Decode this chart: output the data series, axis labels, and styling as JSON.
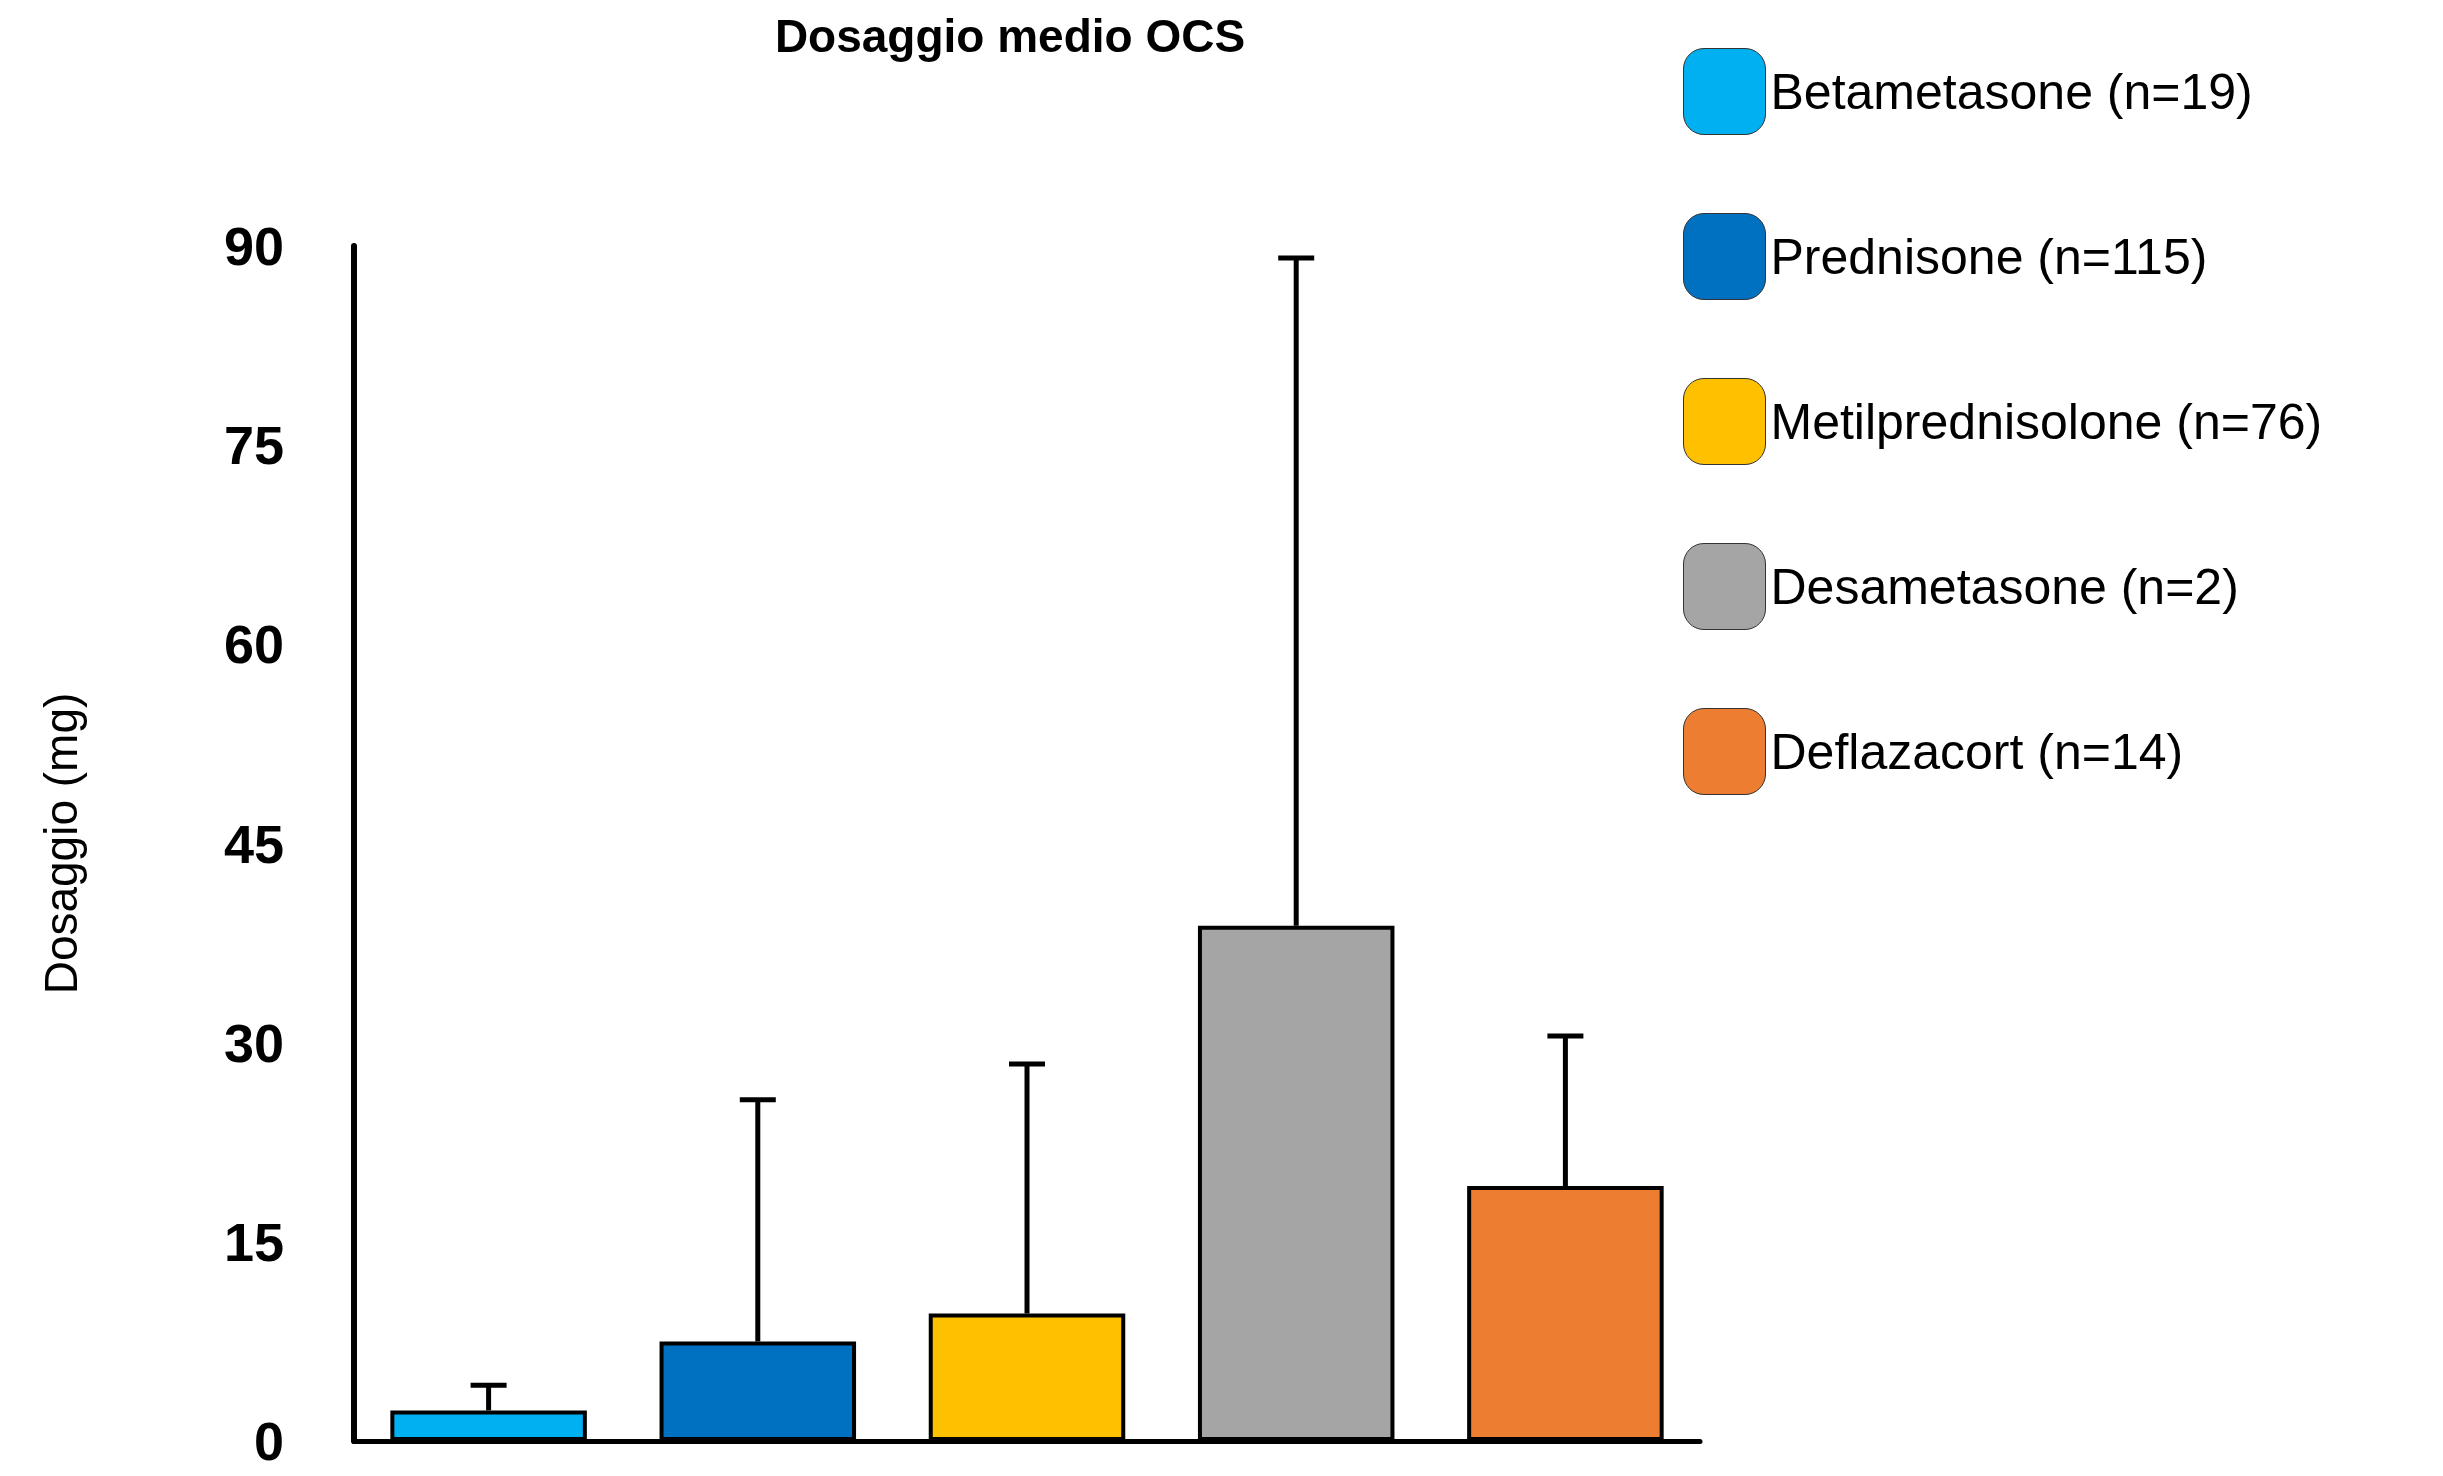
{
  "chart_data": {
    "type": "bar",
    "title": "Dosaggio medio OCS",
    "ylabel": "Dosaggio (mg)",
    "categories": [
      null,
      null,
      null,
      null,
      null
    ],
    "stacked": true,
    "series": [
      {
        "name": "Betametasone (n=19)",
        "color": "#00b0f0",
        "values": [
          2.3,
          null,
          null,
          null,
          null
        ],
        "errors": [
          [
            2.3,
            4.2
          ],
          null,
          null,
          null,
          null
        ]
      },
      {
        "name": "Prednisone (n=115)",
        "color": "#0070c0",
        "values": [
          null,
          7.5,
          null,
          null,
          null
        ],
        "errors": [
          null,
          [
            7.5,
            25.7
          ],
          null,
          null,
          null
        ]
      },
      {
        "name": "Metilprednisolone (n=76)",
        "color": "#ffc000",
        "values": [
          null,
          null,
          9.6,
          null,
          null
        ],
        "errors": [
          null,
          null,
          [
            9.6,
            28.4
          ],
          null,
          null
        ]
      },
      {
        "name": "Desametasone (n=2)",
        "color": "#a5a5a5",
        "values": [
          null,
          null,
          null,
          38.8,
          null
        ],
        "errors": [
          null,
          null,
          null,
          [
            38.8,
            89.1
          ],
          null
        ]
      },
      {
        "name": "Deflazacort (n=14)",
        "color": "#ed7d31",
        "values": [
          null,
          null,
          null,
          null,
          19.2
        ],
        "errors": [
          null,
          null,
          null,
          null,
          [
            19.2,
            30.5
          ]
        ]
      }
    ],
    "ylim": [
      0,
      90
    ],
    "yticks": [
      0,
      15,
      30,
      45,
      60,
      75,
      90
    ],
    "grid": false,
    "legend": "top right"
  }
}
